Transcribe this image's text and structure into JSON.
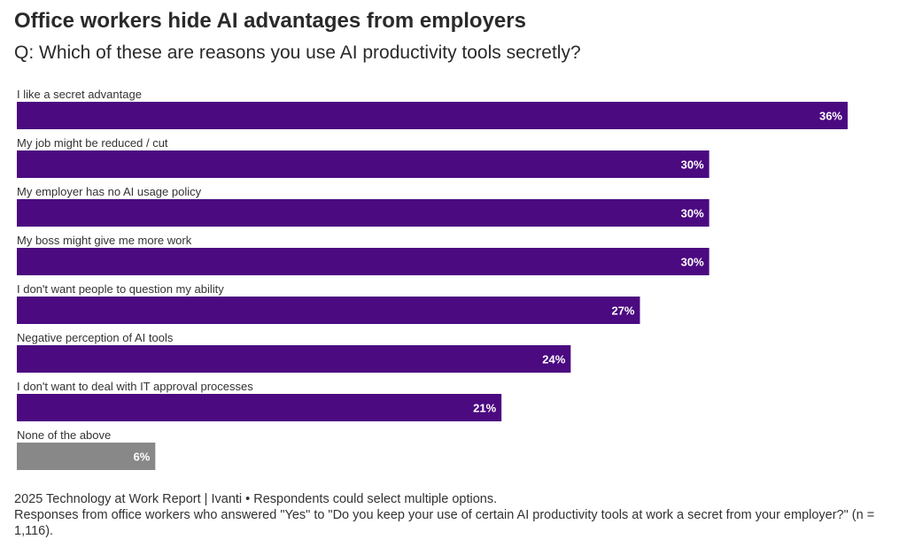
{
  "title": "Office workers hide AI advantages from employers",
  "subtitle": "Q: Which of these are reasons you use AI productivity tools secretly?",
  "chart_data": {
    "type": "bar",
    "orientation": "horizontal",
    "categories": [
      "I like a secret advantage",
      "My job might be reduced / cut",
      "My employer has no AI usage policy",
      "My boss might give me more work",
      "I don't want people to question my ability",
      "Negative perception of AI tools",
      "I don't want to deal with IT approval processes",
      "None of the above"
    ],
    "values": [
      36,
      30,
      30,
      30,
      27,
      24,
      21,
      6
    ],
    "value_labels": [
      "36%",
      "30%",
      "30%",
      "30%",
      "27%",
      "24%",
      "21%",
      "6%"
    ],
    "colors": [
      "#4b0a80",
      "#4b0a80",
      "#4b0a80",
      "#4b0a80",
      "#4b0a80",
      "#4b0a80",
      "#4b0a80",
      "#888888"
    ],
    "xlim": [
      0,
      36
    ],
    "grid": false,
    "legend": "none"
  },
  "footer": {
    "line1": "2025 Technology at Work Report | Ivanti • Respondents could select multiple options.",
    "line2": "Responses from office workers who answered \"Yes\" to \"Do you keep your use of certain AI productivity tools at work a secret from your employer?\" (n = 1,116)."
  }
}
